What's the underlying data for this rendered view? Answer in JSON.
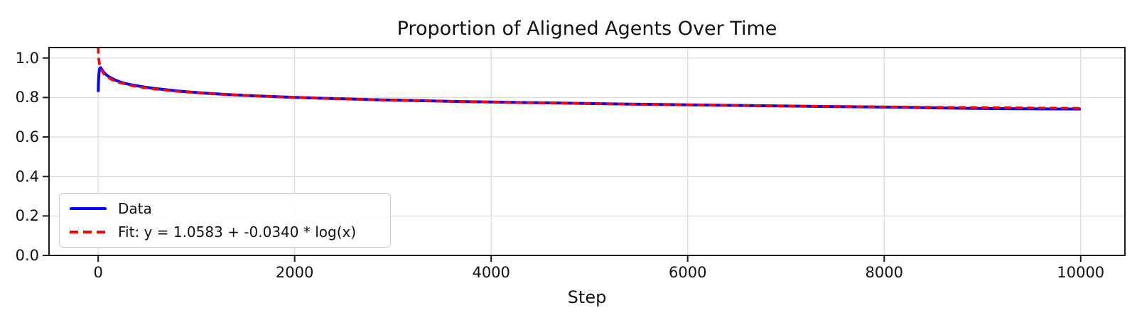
{
  "chart_data": {
    "type": "line",
    "title": "Proportion of Aligned Agents Over Time",
    "xlabel": "Step",
    "ylabel": "",
    "xlim": [
      -500,
      10450
    ],
    "ylim": [
      0,
      1.053
    ],
    "x_ticks": [
      0,
      2000,
      4000,
      6000,
      8000,
      10000
    ],
    "x_tick_labels": [
      "0",
      "2000",
      "4000",
      "6000",
      "8000",
      "10000"
    ],
    "y_ticks": [
      0.0,
      0.2,
      0.4,
      0.6,
      0.8,
      1.0
    ],
    "y_tick_labels": [
      "0.0",
      "0.2",
      "0.4",
      "0.6",
      "0.8",
      "1.0"
    ],
    "grid": true,
    "grid_color": "#dcdcdc",
    "spine_color": "#1a1a1a",
    "legend_position": "lower left",
    "fit_formula": "y = 1.0583 + -0.0340 * log(x)",
    "fit_coefficients": {
      "intercept": 1.0583,
      "slope": -0.034
    },
    "series": [
      {
        "name": "Data",
        "color": "#0000ff",
        "style": "solid",
        "line_width": 4,
        "points": [
          [
            1,
            0.828
          ],
          [
            2,
            0.856
          ],
          [
            4,
            0.888
          ],
          [
            6,
            0.908
          ],
          [
            9,
            0.927
          ],
          [
            13,
            0.94
          ],
          [
            18,
            0.948
          ],
          [
            25,
            0.951
          ],
          [
            33,
            0.946
          ],
          [
            42,
            0.938
          ],
          [
            55,
            0.929
          ],
          [
            70,
            0.921
          ],
          [
            90,
            0.912
          ],
          [
            110,
            0.905
          ],
          [
            140,
            0.897
          ],
          [
            175,
            0.888
          ],
          [
            220,
            0.879
          ],
          [
            270,
            0.872
          ],
          [
            330,
            0.865
          ],
          [
            400,
            0.859
          ],
          [
            480,
            0.852
          ],
          [
            570,
            0.846
          ],
          [
            680,
            0.84
          ],
          [
            800,
            0.8335
          ],
          [
            950,
            0.827
          ],
          [
            1100,
            0.8215
          ],
          [
            1300,
            0.8155
          ],
          [
            1500,
            0.8105
          ],
          [
            1750,
            0.8055
          ],
          [
            2000,
            0.8005
          ],
          [
            2250,
            0.7965
          ],
          [
            2500,
            0.793
          ],
          [
            2800,
            0.789
          ],
          [
            3100,
            0.7855
          ],
          [
            3400,
            0.7825
          ],
          [
            3700,
            0.7795
          ],
          [
            4000,
            0.777
          ],
          [
            4300,
            0.7745
          ],
          [
            4600,
            0.7725
          ],
          [
            5000,
            0.7695
          ],
          [
            5400,
            0.7665
          ],
          [
            5800,
            0.764
          ],
          [
            6200,
            0.7615
          ],
          [
            6600,
            0.759
          ],
          [
            7000,
            0.757
          ],
          [
            7400,
            0.7545
          ],
          [
            7800,
            0.7525
          ],
          [
            8200,
            0.75
          ],
          [
            8600,
            0.7467
          ],
          [
            9000,
            0.7443
          ],
          [
            9400,
            0.7428
          ],
          [
            9700,
            0.742
          ],
          [
            10000,
            0.7418
          ]
        ]
      },
      {
        "name": "Fit: y = 1.0583 + -0.0340 * log(x)",
        "color": "#ff0000",
        "style": "dashed",
        "dash": [
          10,
          6
        ],
        "line_width": 3.6,
        "points": [
          [
            1,
            1.0583
          ],
          [
            2,
            1.0347
          ],
          [
            3,
            1.021
          ],
          [
            5,
            1.0036
          ],
          [
            8,
            0.9876
          ],
          [
            12,
            0.9738
          ],
          [
            18,
            0.96
          ],
          [
            27,
            0.9462
          ],
          [
            40,
            0.9329
          ],
          [
            60,
            0.9191
          ],
          [
            90,
            0.9053
          ],
          [
            140,
            0.8903
          ],
          [
            220,
            0.875
          ],
          [
            350,
            0.8592
          ],
          [
            550,
            0.8438
          ],
          [
            850,
            0.829
          ],
          [
            1300,
            0.8146
          ],
          [
            2000,
            0.7999
          ],
          [
            3000,
            0.7861
          ],
          [
            4200,
            0.7747
          ],
          [
            5500,
            0.7655
          ],
          [
            7000,
            0.7573
          ],
          [
            8500,
            0.7507
          ],
          [
            10000,
            0.7452
          ]
        ]
      }
    ]
  }
}
